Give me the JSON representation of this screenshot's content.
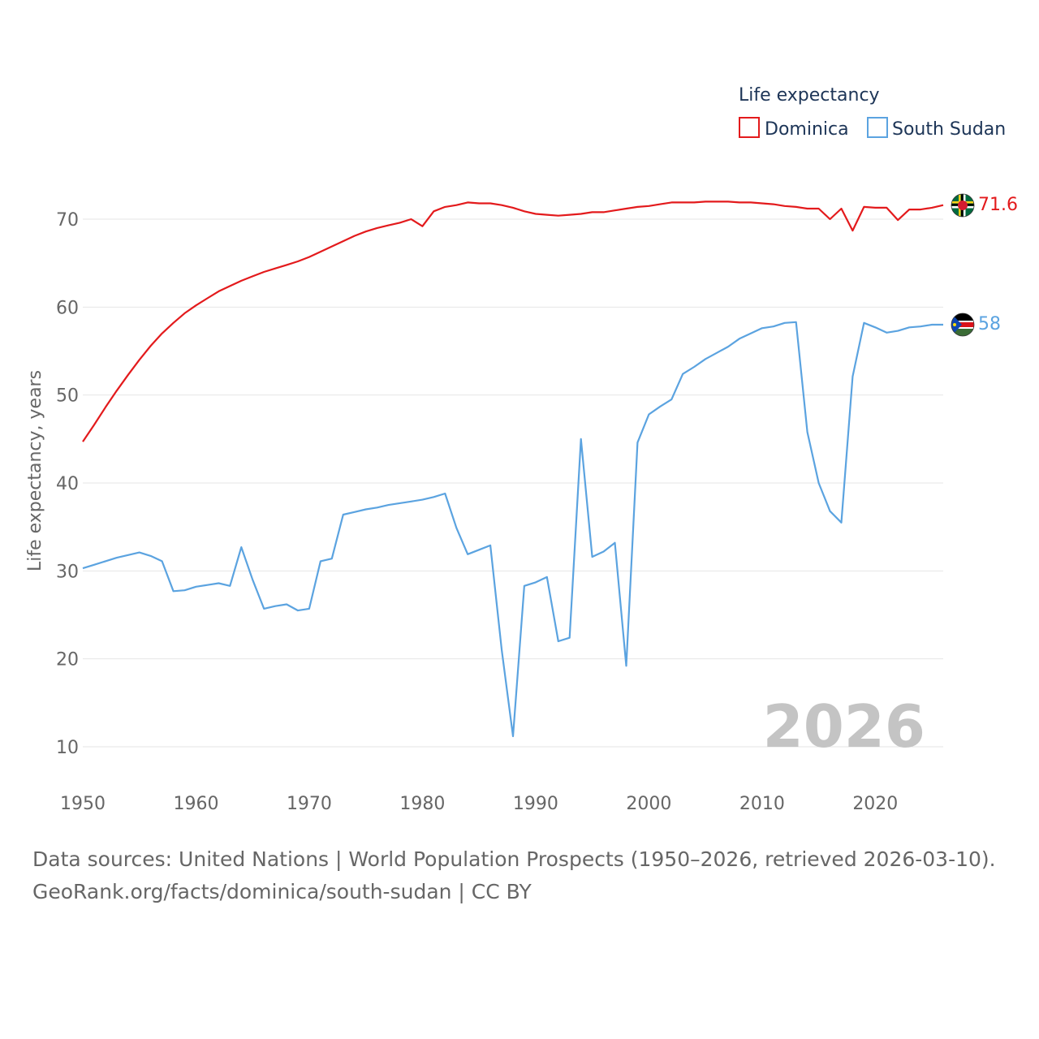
{
  "chart_data": {
    "type": "line",
    "title": "Life expectancy",
    "ylabel": "Life expectancy, years",
    "xlabel": "",
    "xlim": [
      1950,
      2026
    ],
    "ylim": [
      5,
      80
    ],
    "yticks": [
      10,
      20,
      30,
      40,
      50,
      60,
      70
    ],
    "xticks": [
      1950,
      1960,
      1970,
      1980,
      1990,
      2000,
      2010,
      2020
    ],
    "grid": true,
    "legend": "top-right",
    "year_label": "2026",
    "x": [
      1950,
      1951,
      1952,
      1953,
      1954,
      1955,
      1956,
      1957,
      1958,
      1959,
      1960,
      1961,
      1962,
      1963,
      1964,
      1965,
      1966,
      1967,
      1968,
      1969,
      1970,
      1971,
      1972,
      1973,
      1974,
      1975,
      1976,
      1977,
      1978,
      1979,
      1980,
      1981,
      1982,
      1983,
      1984,
      1985,
      1986,
      1987,
      1988,
      1989,
      1990,
      1991,
      1992,
      1993,
      1994,
      1995,
      1996,
      1997,
      1998,
      1999,
      2000,
      2001,
      2002,
      2003,
      2004,
      2005,
      2006,
      2007,
      2008,
      2009,
      2010,
      2011,
      2012,
      2013,
      2014,
      2015,
      2016,
      2017,
      2018,
      2019,
      2020,
      2021,
      2022,
      2023,
      2024,
      2025,
      2026
    ],
    "series": [
      {
        "name": "Dominica",
        "color": "#e31a1c",
        "end_label": "71.6",
        "values": [
          44.7,
          46.6,
          48.6,
          50.5,
          52.3,
          54.0,
          55.6,
          57.0,
          58.2,
          59.3,
          60.2,
          61.0,
          61.8,
          62.4,
          63.0,
          63.5,
          64.0,
          64.4,
          64.8,
          65.2,
          65.7,
          66.3,
          66.9,
          67.5,
          68.1,
          68.6,
          69.0,
          69.3,
          69.6,
          70.0,
          69.2,
          70.9,
          71.4,
          71.6,
          71.9,
          71.8,
          71.8,
          71.6,
          71.3,
          70.9,
          70.6,
          70.5,
          70.4,
          70.5,
          70.6,
          70.8,
          70.8,
          71.0,
          71.2,
          71.4,
          71.5,
          71.7,
          71.9,
          71.9,
          71.9,
          72.0,
          72.0,
          72.0,
          71.9,
          71.9,
          71.8,
          71.7,
          71.5,
          71.4,
          71.2,
          71.2,
          70.0,
          71.2,
          68.7,
          71.4,
          71.3,
          71.3,
          69.9,
          71.1,
          71.1,
          71.3,
          71.6
        ]
      },
      {
        "name": "South Sudan",
        "color": "#5ba3e0",
        "end_label": "58",
        "values": [
          30.3,
          30.7,
          31.1,
          31.5,
          31.8,
          32.1,
          31.7,
          31.1,
          27.7,
          27.8,
          28.2,
          28.4,
          28.6,
          28.3,
          32.7,
          29.0,
          25.7,
          26.0,
          26.2,
          25.5,
          25.7,
          31.1,
          31.4,
          36.4,
          36.7,
          37.0,
          37.2,
          37.5,
          37.7,
          37.9,
          38.1,
          38.4,
          38.8,
          34.9,
          31.9,
          32.4,
          32.9,
          21.0,
          11.2,
          28.3,
          28.7,
          29.3,
          22.0,
          22.4,
          45.0,
          31.6,
          32.2,
          33.2,
          19.2,
          44.6,
          47.8,
          48.7,
          49.5,
          52.4,
          53.2,
          54.1,
          54.8,
          55.5,
          56.4,
          57.0,
          57.6,
          57.8,
          58.2,
          58.3,
          45.8,
          40.0,
          36.8,
          35.5,
          52.1,
          58.2,
          57.7,
          57.1,
          57.3,
          57.7,
          57.8,
          58.0,
          58.0
        ]
      }
    ]
  },
  "source": {
    "line1": "Data sources: United Nations | World Population Prospects (1950–2026, retrieved 2026-03-10).",
    "line2": "GeoRank.org/facts/dominica/south-sudan | CC BY"
  }
}
